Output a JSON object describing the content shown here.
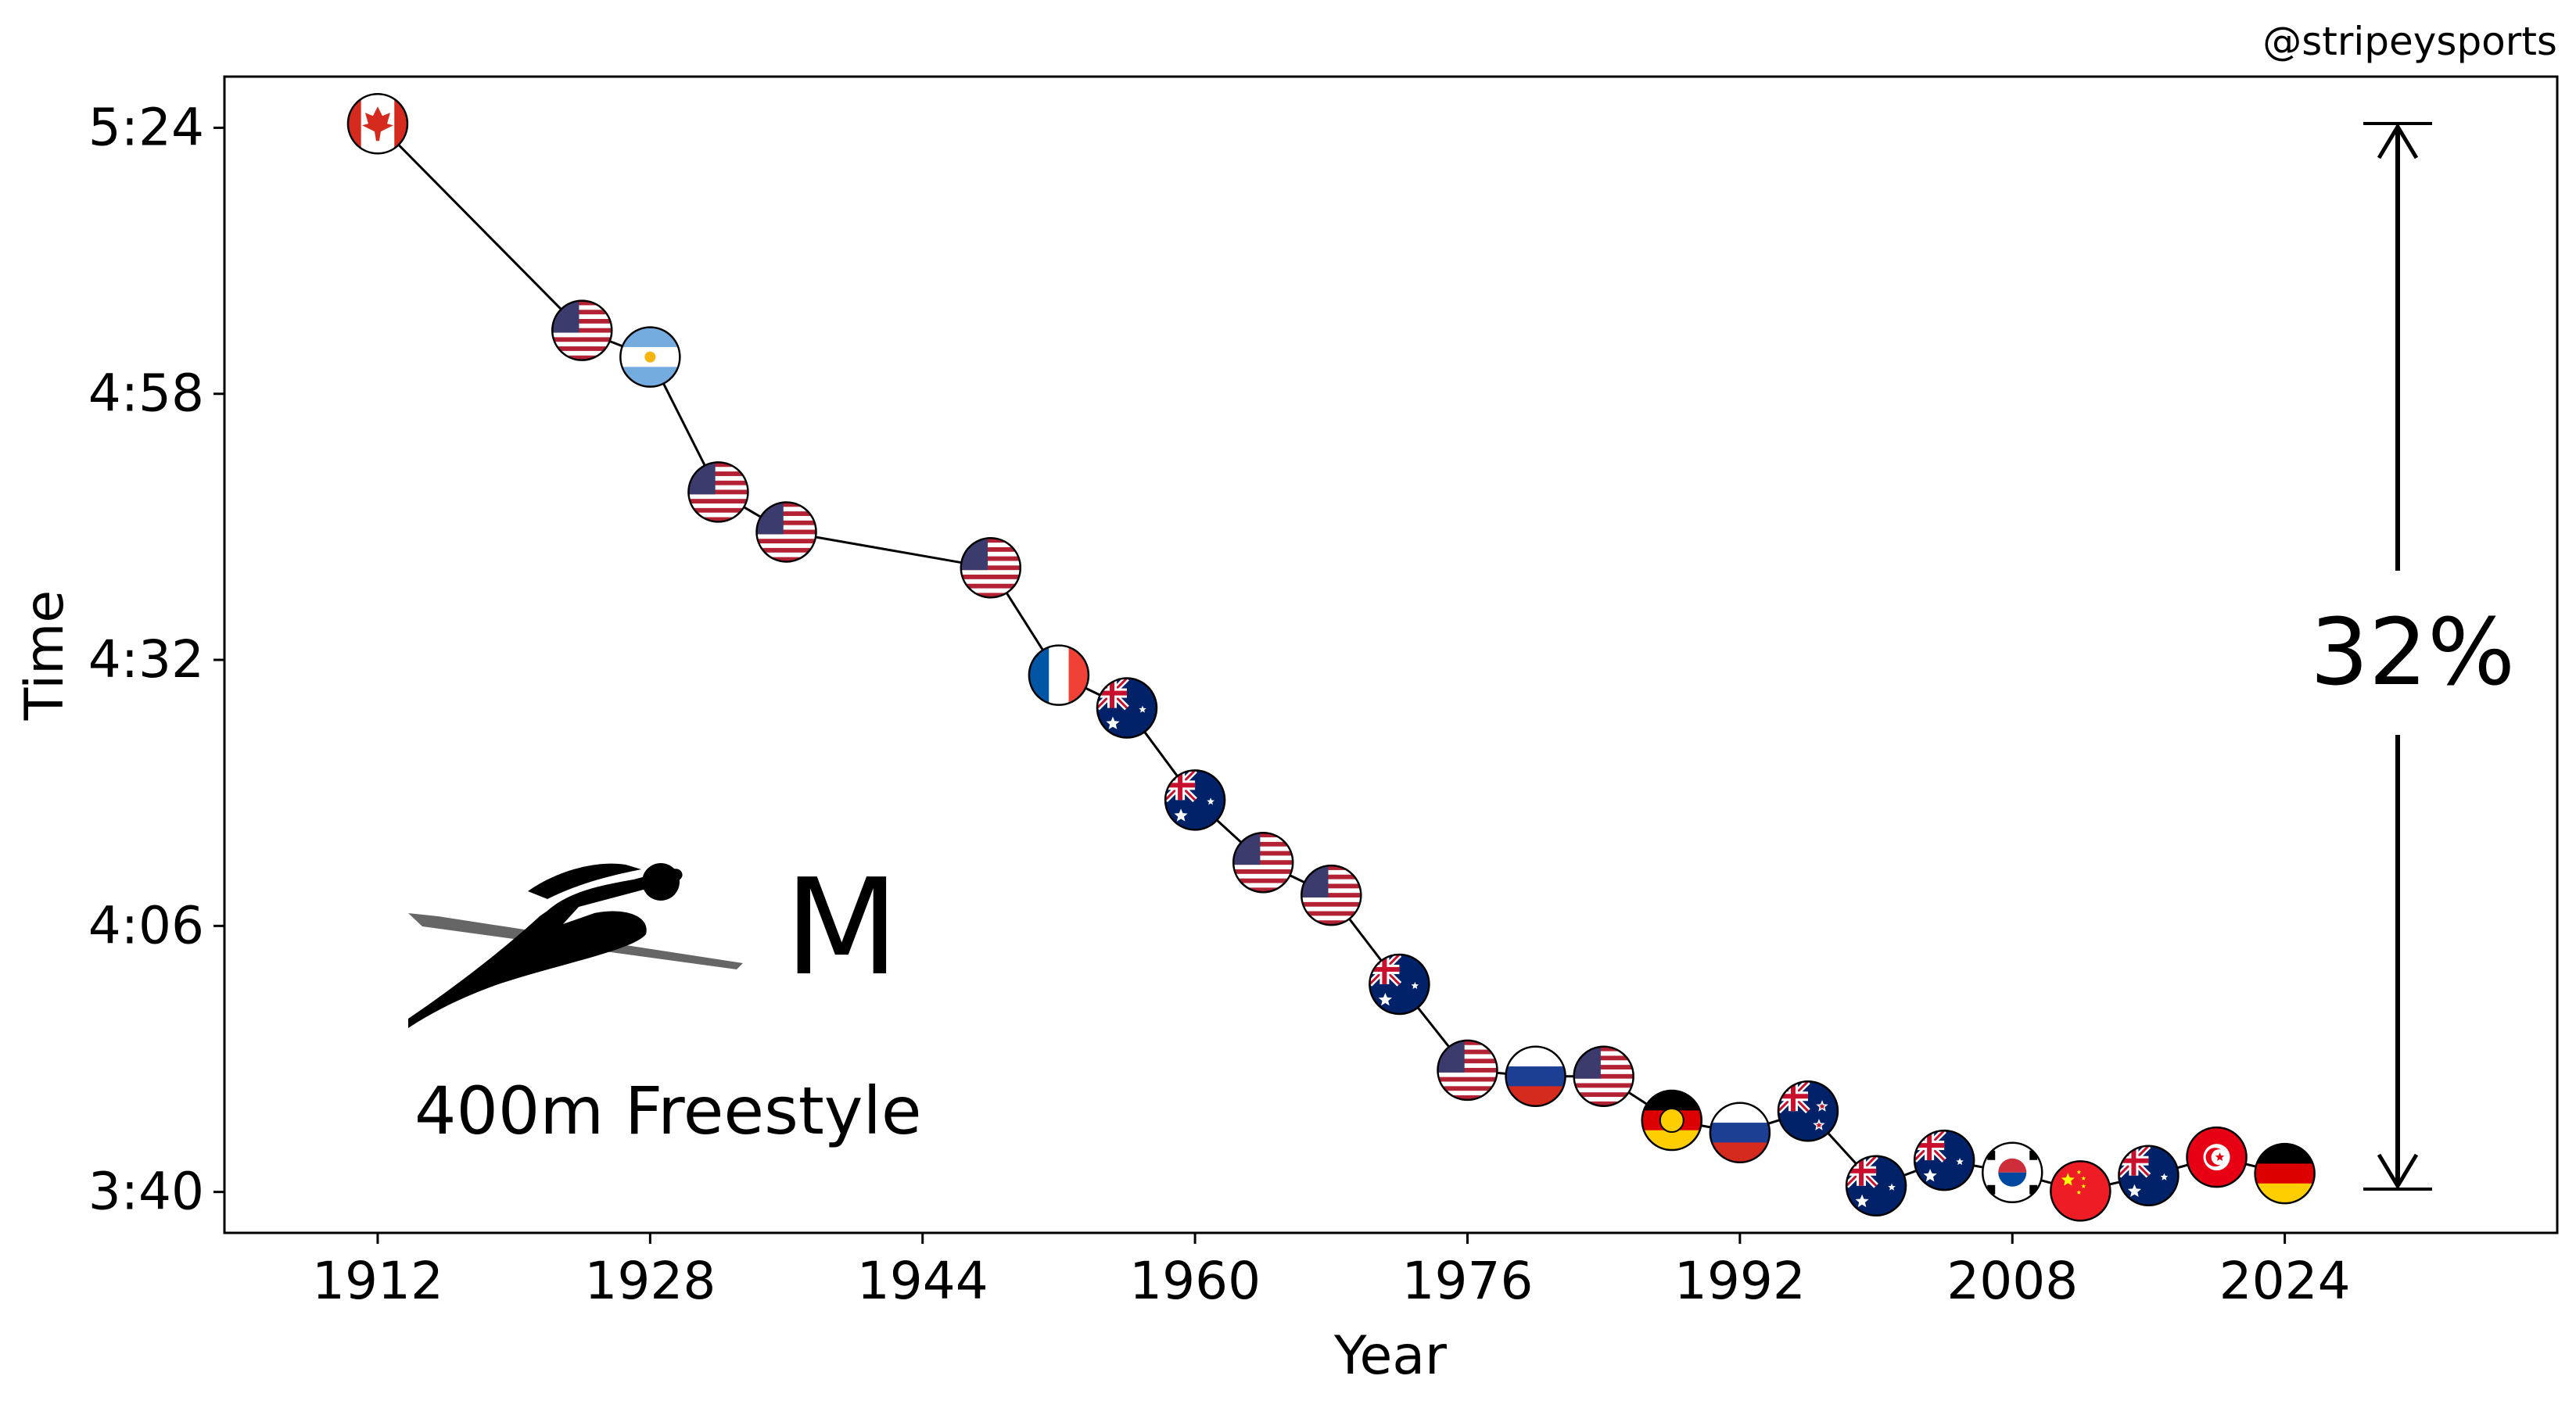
{
  "credit": "@stripeysports",
  "event_label": "400m Freestyle",
  "gender_label": "M",
  "improvement_label": "32%",
  "colors": {
    "line": "#000000",
    "background": "#ffffff"
  },
  "icon": "swimmer-icon",
  "chart_data": {
    "type": "line",
    "title": "",
    "xlabel": "Year",
    "ylabel": "Time",
    "xlim": [
      1903,
      2040
    ],
    "ylim": [
      216,
      329
    ],
    "grid": false,
    "x_ticks": [
      1912,
      1928,
      1944,
      1960,
      1976,
      1992,
      2008,
      2024
    ],
    "y_ticks": [
      {
        "value": 220,
        "label": "3:40"
      },
      {
        "value": 246,
        "label": "4:06"
      },
      {
        "value": 272,
        "label": "4:32"
      },
      {
        "value": 298,
        "label": "4:58"
      },
      {
        "value": 324,
        "label": "5:24"
      }
    ],
    "points": [
      {
        "year": 1912,
        "time": 324.4,
        "country": "CAN"
      },
      {
        "year": 1924,
        "time": 304.2,
        "country": "USA"
      },
      {
        "year": 1928,
        "time": 301.6,
        "country": "ARG"
      },
      {
        "year": 1932,
        "time": 288.4,
        "country": "USA"
      },
      {
        "year": 1936,
        "time": 284.5,
        "country": "USA"
      },
      {
        "year": 1948,
        "time": 281.0,
        "country": "USA"
      },
      {
        "year": 1952,
        "time": 270.5,
        "country": "FRA"
      },
      {
        "year": 1956,
        "time": 267.3,
        "country": "AUS"
      },
      {
        "year": 1960,
        "time": 258.3,
        "country": "AUS"
      },
      {
        "year": 1964,
        "time": 252.2,
        "country": "USA"
      },
      {
        "year": 1968,
        "time": 249.0,
        "country": "USA"
      },
      {
        "year": 1972,
        "time": 240.3,
        "country": "AUS"
      },
      {
        "year": 1976,
        "time": 231.9,
        "country": "USA"
      },
      {
        "year": 1980,
        "time": 231.3,
        "country": "URS"
      },
      {
        "year": 1984,
        "time": 231.3,
        "country": "USA"
      },
      {
        "year": 1988,
        "time": 227.0,
        "country": "GDR"
      },
      {
        "year": 1992,
        "time": 225.8,
        "country": "EUN"
      },
      {
        "year": 1996,
        "time": 227.9,
        "country": "NZL"
      },
      {
        "year": 2000,
        "time": 220.6,
        "country": "AUS"
      },
      {
        "year": 2004,
        "time": 223.1,
        "country": "AUS"
      },
      {
        "year": 2008,
        "time": 221.9,
        "country": "KOR"
      },
      {
        "year": 2012,
        "time": 220.1,
        "country": "CHN"
      },
      {
        "year": 2016,
        "time": 221.6,
        "country": "AUS"
      },
      {
        "year": 2020,
        "time": 223.4,
        "country": "TUN"
      },
      {
        "year": 2024,
        "time": 221.8,
        "country": "GER"
      }
    ]
  }
}
